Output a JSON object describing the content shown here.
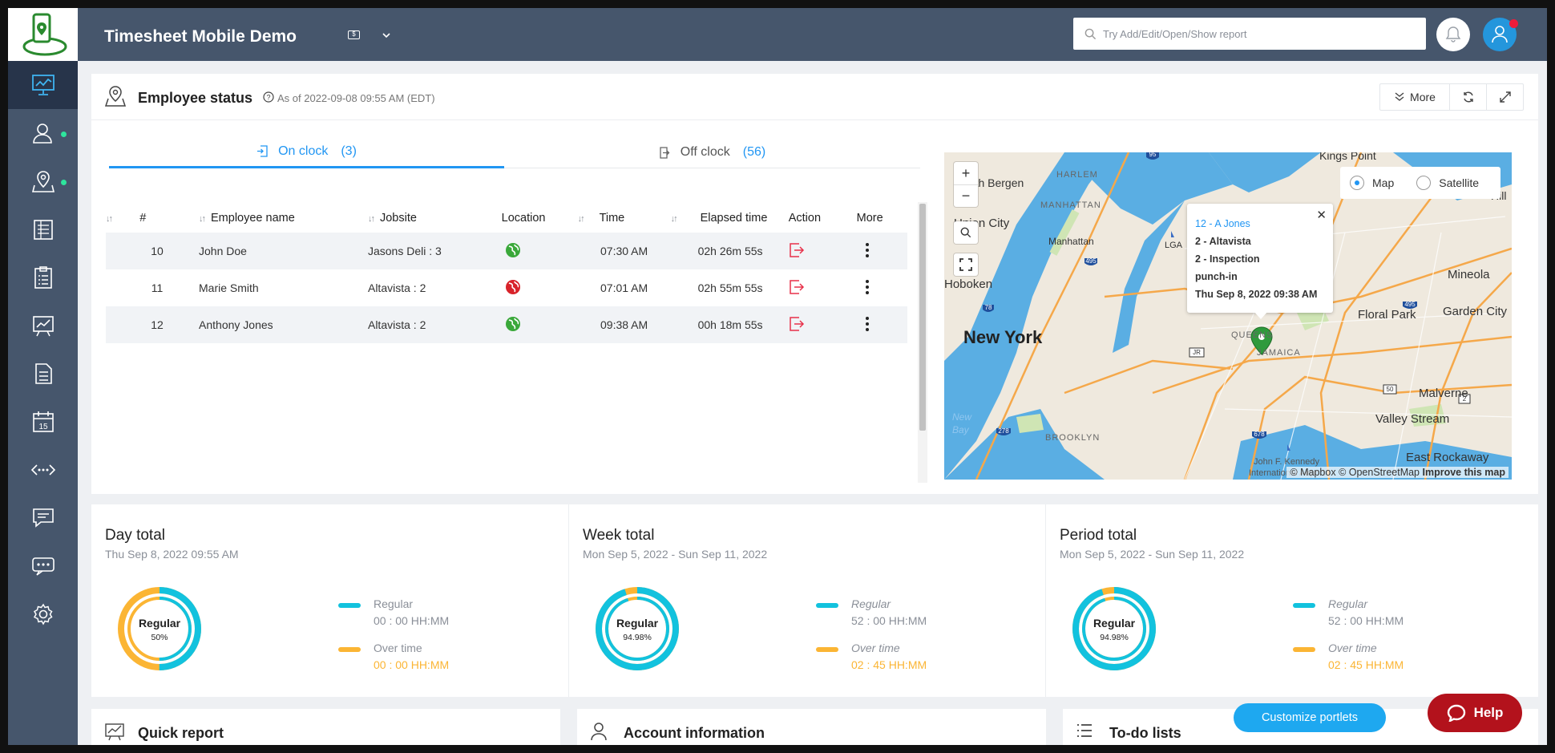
{
  "app": {
    "title": "Timesheet Mobile Demo",
    "version_badge": "$"
  },
  "search": {
    "placeholder": "Try Add/Edit/Open/Show report"
  },
  "sidebar": {
    "items": [
      {
        "name": "dashboard-icon",
        "active": true
      },
      {
        "name": "employees-icon",
        "dot": true
      },
      {
        "name": "locations-icon",
        "dot": true
      },
      {
        "name": "timesheets-icon"
      },
      {
        "name": "clipboard-icon"
      },
      {
        "name": "reports-chart-icon"
      },
      {
        "name": "document-icon"
      },
      {
        "name": "calendar-icon"
      },
      {
        "name": "integrations-icon"
      },
      {
        "name": "messages-icon"
      },
      {
        "name": "chat-icon"
      },
      {
        "name": "settings-icon"
      }
    ]
  },
  "employee_status": {
    "title": "Employee status",
    "as_of": "As of 2022-09-08 09:55 AM (EDT)",
    "buttons": {
      "more": "More"
    },
    "tabs": {
      "on_clock": {
        "label": "On clock",
        "count": "(3)"
      },
      "off_clock": {
        "label": "Off clock",
        "count": "(56)"
      }
    },
    "columns": {
      "num": "#",
      "name": "Employee name",
      "jobsite": "Jobsite",
      "location": "Location",
      "time": "Time",
      "elapsed": "Elapsed time",
      "action": "Action",
      "more": "More"
    },
    "rows": [
      {
        "num": "10",
        "name": "John Doe",
        "jobsite": "Jasons Deli : 3",
        "location_status": "green",
        "time": "07:30 AM",
        "elapsed": "02h 26m 55s"
      },
      {
        "num": "11",
        "name": "Marie Smith",
        "jobsite": "Altavista : 2",
        "location_status": "red",
        "time": "07:01 AM",
        "elapsed": "02h 55m 55s"
      },
      {
        "num": "12",
        "name": "Anthony Jones",
        "jobsite": "Altavista : 2",
        "location_status": "green",
        "time": "09:38 AM",
        "elapsed": "00h 18m 55s"
      }
    ]
  },
  "map": {
    "layers": {
      "map": "Map",
      "satellite": "Satellite"
    },
    "popup": {
      "line1": "12 - A Jones",
      "line2": "2 - Altavista",
      "line3": "2 - Inspection",
      "line4": "punch-in",
      "line5": "Thu Sep 8, 2022 09:38 AM"
    },
    "labels": {
      "new_york": "New York",
      "hoboken": "Hoboken",
      "union_city": "Union City",
      "north_bergen": "North Bergen",
      "harlem": "HARLEM",
      "manhattan_cap": "MANHATTAN",
      "manhattan": "Manhattan",
      "queens": "QUEENS",
      "jamaica": "JAMAICA",
      "brooklyn": "BROOKLYN",
      "lga": "LGA",
      "kings_point": "Kings Point",
      "mineola": "Mineola",
      "floral_park": "Floral Park",
      "garden_city": "Garden City",
      "malverne": "Malverne",
      "valley_stream": "Valley Stream",
      "east_rockaway": "East Rockaway",
      "jfk": "John F. Kennedy",
      "intl_airport": "International Airport",
      "new_bay": "New Bay",
      "hill": "Hill"
    },
    "highway_shields": [
      "95",
      "495",
      "495",
      "278",
      "678",
      "78",
      "JR",
      "50",
      "2"
    ],
    "attribution": {
      "mapbox": "© Mapbox",
      "osm": "© OpenStreetMap",
      "improve": "Improve this map"
    }
  },
  "totals": [
    {
      "title": "Day total",
      "subtitle": "Thu Sep 8, 2022 09:55 AM",
      "center_label": "Regular",
      "center_pct": "50%",
      "regular_pct": 50,
      "regular_label": "Regular",
      "regular_value": "00 : 00 HH:MM",
      "overtime_label": "Over time",
      "overtime_value": "00 : 00 HH:MM"
    },
    {
      "title": "Week total",
      "subtitle": "Mon Sep 5, 2022 - Sun Sep 11, 2022",
      "center_label": "Regular",
      "center_pct": "94.98%",
      "regular_pct": 94.98,
      "regular_label": "Regular",
      "regular_value": "52 : 00 HH:MM",
      "overtime_label": "Over time",
      "overtime_value": "02 : 45 HH:MM"
    },
    {
      "title": "Period total",
      "subtitle": "Mon Sep 5, 2022 - Sun Sep 11, 2022",
      "center_label": "Regular",
      "center_pct": "94.98%",
      "regular_pct": 94.98,
      "regular_label": "Regular",
      "regular_value": "52 : 00 HH:MM",
      "overtime_label": "Over time",
      "overtime_value": "02 : 45 HH:MM"
    }
  ],
  "portlets": {
    "quick_report": "Quick report",
    "account_info": "Account information",
    "todo": "To-do lists"
  },
  "actions": {
    "customize": "Customize portlets",
    "help": "Help"
  },
  "colors": {
    "regular": "#12c2de",
    "overtime": "#fbb534",
    "accent": "#2196f3",
    "sidebar": "#46566c",
    "help": "#b3121c"
  }
}
